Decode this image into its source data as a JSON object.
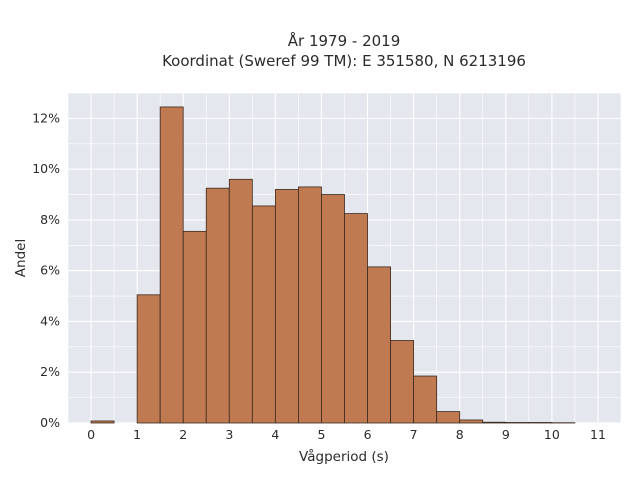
{
  "chart_data": {
    "type": "bar",
    "title": "År 1979 - 2019",
    "subtitle": "Koordinat (Sweref 99 TM): E 351580, N 6213196",
    "xlabel": "Vågperiod (s)",
    "ylabel": "Andel",
    "xlim": [
      -0.5,
      11.5
    ],
    "ylim": [
      0,
      13
    ],
    "x_ticks": [
      0,
      1,
      2,
      3,
      4,
      5,
      6,
      7,
      8,
      9,
      10,
      11
    ],
    "y_ticks": [
      0,
      2,
      4,
      6,
      8,
      10,
      12
    ],
    "y_tick_suffix": "%",
    "bin_width": 0.5,
    "bins": [
      {
        "start": 0.0,
        "value": 0.08
      },
      {
        "start": 0.5,
        "value": 0.0
      },
      {
        "start": 1.0,
        "value": 5.05
      },
      {
        "start": 1.5,
        "value": 12.45
      },
      {
        "start": 2.0,
        "value": 7.55
      },
      {
        "start": 2.5,
        "value": 9.25
      },
      {
        "start": 3.0,
        "value": 9.6
      },
      {
        "start": 3.5,
        "value": 8.55
      },
      {
        "start": 4.0,
        "value": 9.2
      },
      {
        "start": 4.5,
        "value": 9.3
      },
      {
        "start": 5.0,
        "value": 9.0
      },
      {
        "start": 5.5,
        "value": 8.25
      },
      {
        "start": 6.0,
        "value": 6.15
      },
      {
        "start": 6.5,
        "value": 3.25
      },
      {
        "start": 7.0,
        "value": 1.85
      },
      {
        "start": 7.5,
        "value": 0.45
      },
      {
        "start": 8.0,
        "value": 0.12
      },
      {
        "start": 8.5,
        "value": 0.03
      },
      {
        "start": 9.0,
        "value": 0.02
      },
      {
        "start": 9.5,
        "value": 0.02
      },
      {
        "start": 10.0,
        "value": 0.01
      }
    ],
    "grid": true,
    "colors": {
      "bar_fill": "#c07a52",
      "bar_edge": "#3a2a1f",
      "plot_background": "#e5e7ef",
      "grid": "#ffffff"
    }
  }
}
